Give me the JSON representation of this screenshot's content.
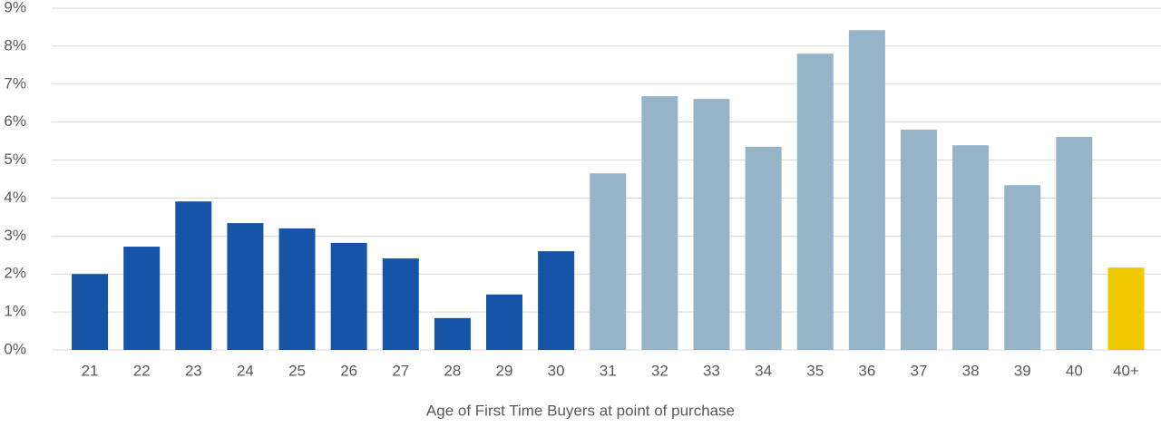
{
  "chart_data": {
    "type": "bar",
    "x_label": "Age of First Time Buyers at point of purchase",
    "categories": [
      "21",
      "22",
      "23",
      "24",
      "25",
      "26",
      "27",
      "28",
      "29",
      "30",
      "31",
      "32",
      "33",
      "34",
      "35",
      "36",
      "37",
      "38",
      "39",
      "40",
      "40+"
    ],
    "values": [
      2.0,
      2.72,
      3.91,
      3.34,
      3.2,
      2.82,
      2.41,
      0.84,
      1.46,
      2.6,
      4.65,
      6.68,
      6.61,
      5.35,
      7.8,
      8.42,
      5.8,
      5.39,
      4.34,
      5.61,
      2.17
    ],
    "colors": [
      "#1554a6",
      "#1554a6",
      "#1554a6",
      "#1554a6",
      "#1554a6",
      "#1554a6",
      "#1554a6",
      "#1554a6",
      "#1554a6",
      "#1554a6",
      "#96b4c8",
      "#96b4c8",
      "#96b4c8",
      "#96b4c8",
      "#96b4c8",
      "#96b4c8",
      "#96b4c8",
      "#96b4c8",
      "#96b4c8",
      "#96b4c8",
      "#f0c800"
    ],
    "ylim": [
      0,
      9
    ],
    "yticks": [
      {
        "value": 0,
        "label": "0%"
      },
      {
        "value": 1,
        "label": "1%"
      },
      {
        "value": 2,
        "label": "2%"
      },
      {
        "value": 3,
        "label": "3%"
      },
      {
        "value": 4,
        "label": "4%"
      },
      {
        "value": 5,
        "label": "5%"
      },
      {
        "value": 6,
        "label": "6%"
      },
      {
        "value": 7,
        "label": "7%"
      },
      {
        "value": 8,
        "label": "8%"
      },
      {
        "value": 9,
        "label": "9%"
      }
    ],
    "grid": true
  }
}
